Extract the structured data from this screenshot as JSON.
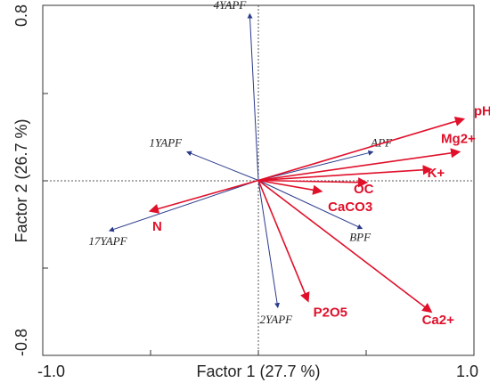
{
  "chart_data": {
    "type": "biplot",
    "xlabel": "Factor 1 (27.7 %)",
    "ylabel": "Factor 2 (26.7 %)",
    "xlim": [
      -1.0,
      1.0
    ],
    "ylim": [
      -0.8,
      0.8
    ],
    "x_ticks": [
      "-1.0",
      "1.0"
    ],
    "y_ticks": [
      "0.8",
      "-0.8"
    ],
    "reference_lines": "dotted lines at x=0 and y=0",
    "colors": {
      "variables": "#e0102a",
      "sites": "#2a3a8c"
    },
    "site_vectors": [
      {
        "label": "4YAPF",
        "x": -0.04,
        "y": 0.76
      },
      {
        "label": "1YAPF",
        "x": -0.33,
        "y": 0.13
      },
      {
        "label": "17YAPF",
        "x": -0.69,
        "y": -0.23
      },
      {
        "label": "APF",
        "x": 0.53,
        "y": 0.13
      },
      {
        "label": "BPF",
        "x": 0.48,
        "y": -0.22
      },
      {
        "label": "2YAPF",
        "x": 0.09,
        "y": -0.58
      }
    ],
    "variable_vectors": [
      {
        "label": "pH",
        "x": 0.95,
        "y": 0.28
      },
      {
        "label": "Mg2+",
        "x": 0.93,
        "y": 0.13
      },
      {
        "label": "K+",
        "x": 0.8,
        "y": 0.05
      },
      {
        "label": "OC",
        "x": 0.5,
        "y": -0.01
      },
      {
        "label": "CaCO3",
        "x": 0.29,
        "y": -0.05
      },
      {
        "label": "N",
        "x": -0.5,
        "y": -0.14
      },
      {
        "label": "P2O5",
        "x": 0.23,
        "y": -0.55
      },
      {
        "label": "Ca2+",
        "x": 0.8,
        "y": -0.6
      }
    ]
  }
}
